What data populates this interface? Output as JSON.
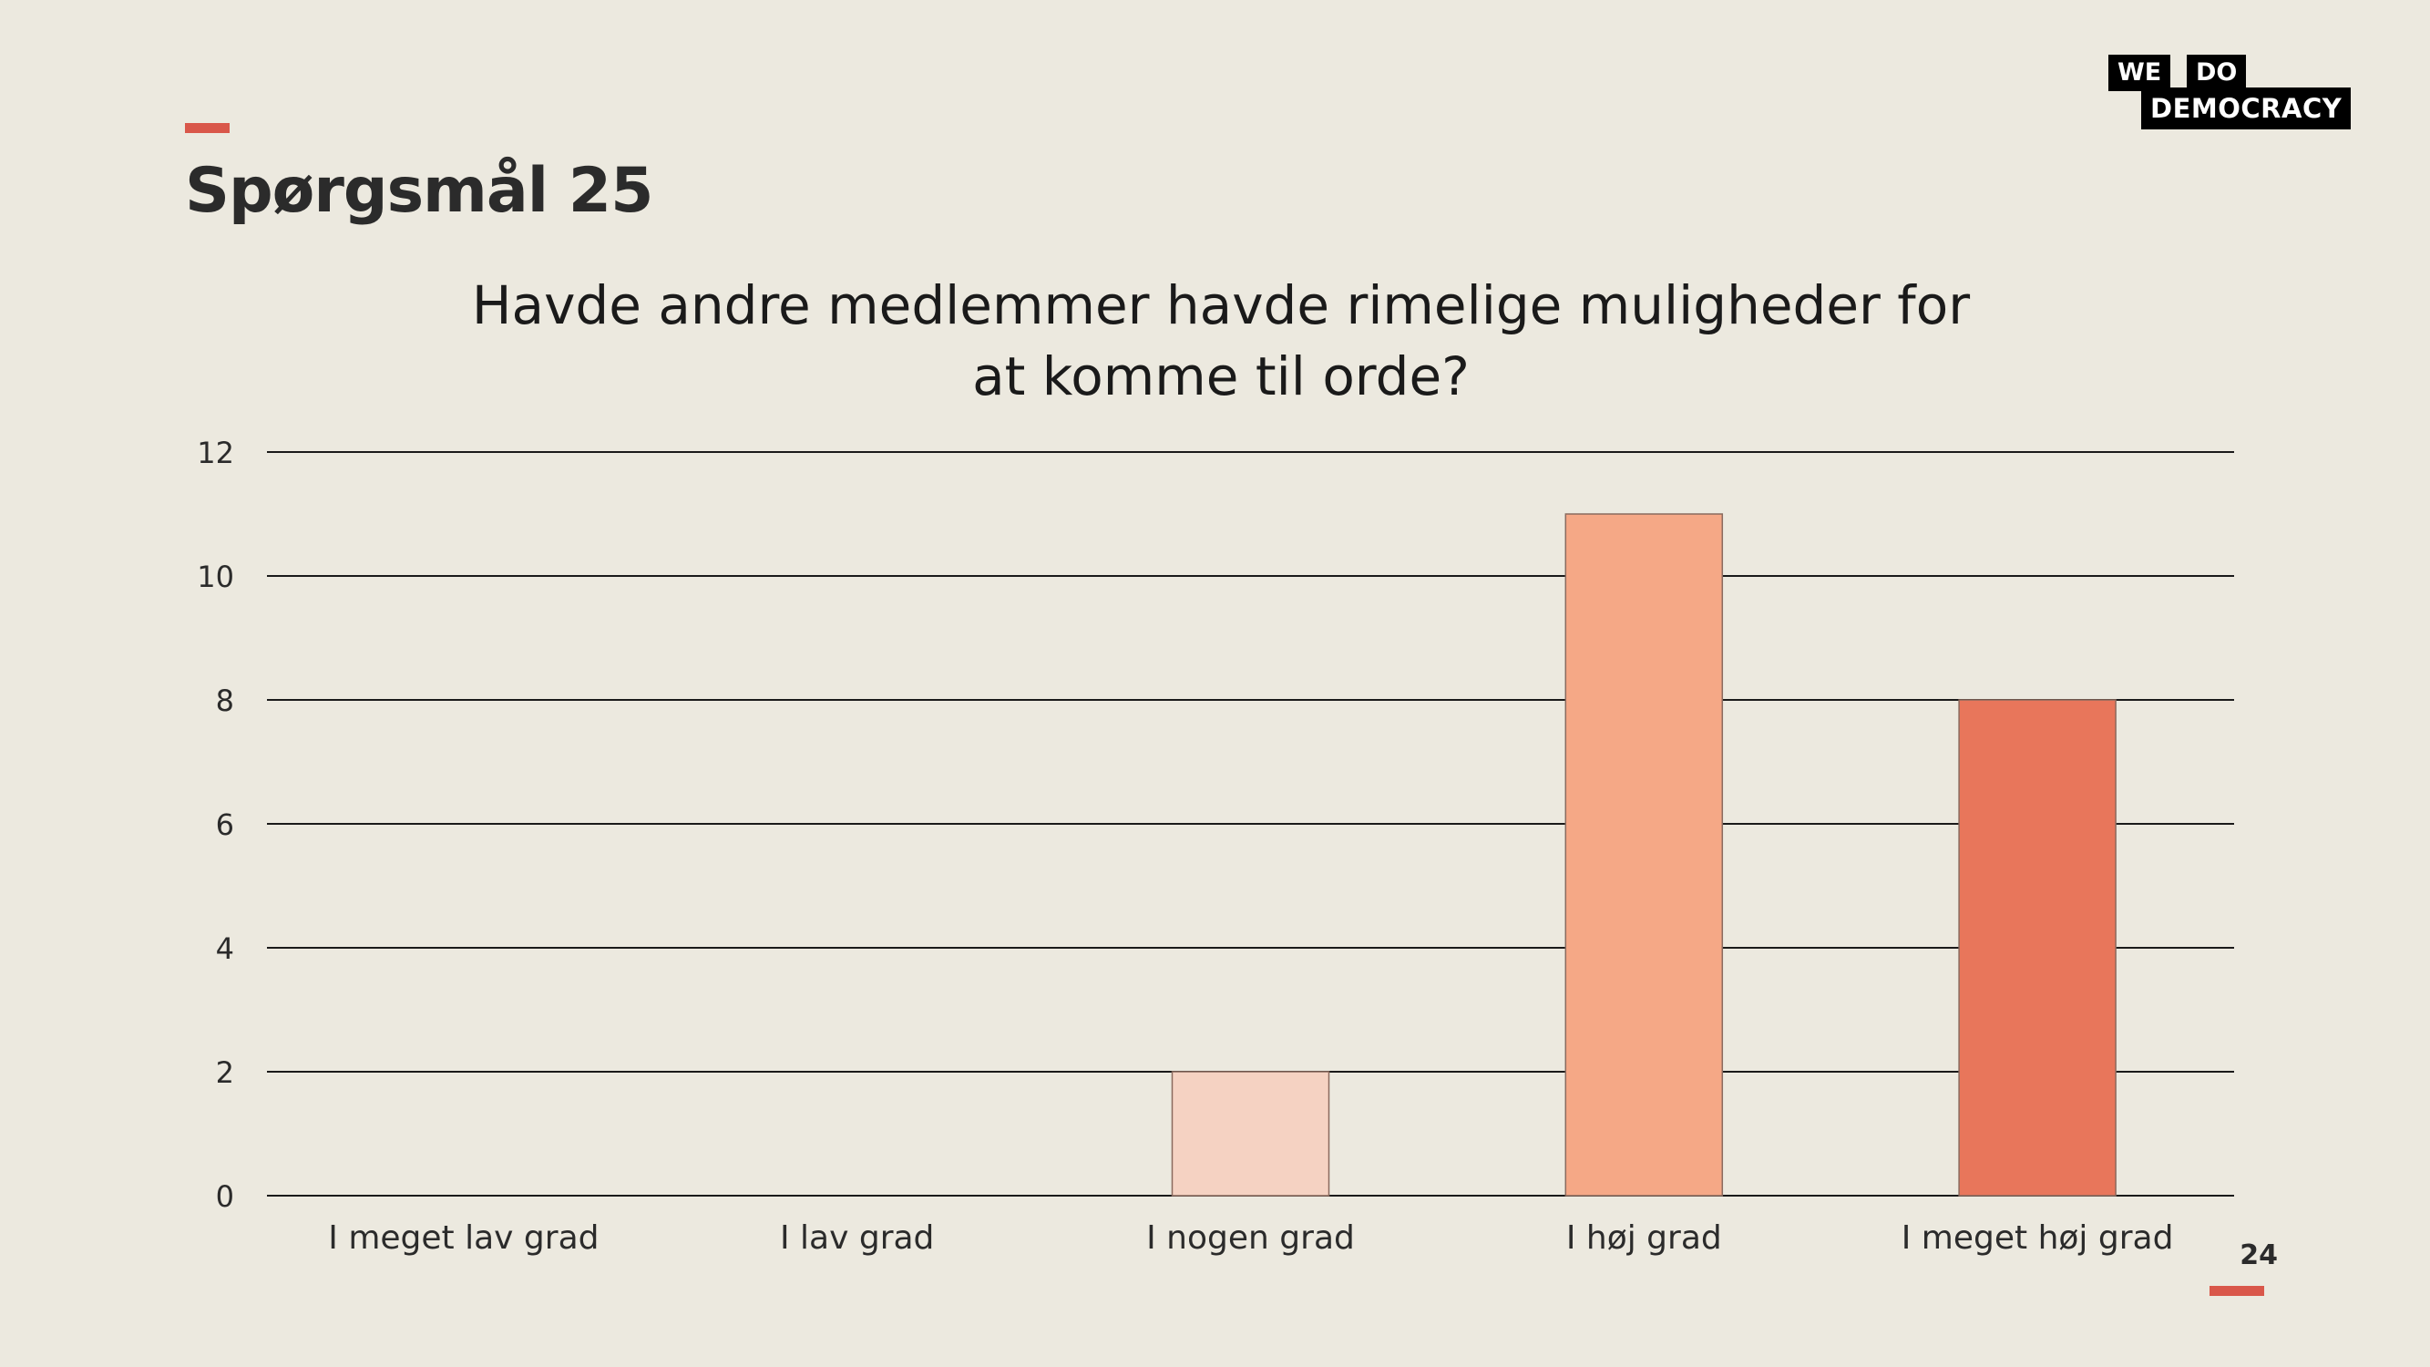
{
  "slide": {
    "title": "Spørgsmål 25",
    "page_number": "24",
    "accent_color": "#D9574A"
  },
  "logo": {
    "line1_a": "WE",
    "line1_b": "DO",
    "line2": "DEMOCRACY"
  },
  "chart_data": {
    "type": "bar",
    "title_lines": [
      "Havde andre medlemmer havde rimelige muligheder for",
      "at komme til orde?"
    ],
    "categories": [
      "I meget lav grad",
      "I lav grad",
      "I nogen grad",
      "I høj grad",
      "I meget høj grad"
    ],
    "values": [
      0,
      0,
      2,
      11,
      8
    ],
    "colors": [
      "#F5D2C2",
      "#F5D2C2",
      "#F5D2C2",
      "#F5A886",
      "#E8765B"
    ],
    "ylim": [
      0,
      12
    ],
    "yticks": [
      0,
      2,
      4,
      6,
      8,
      10,
      12
    ],
    "grid": true,
    "legend": "none"
  }
}
